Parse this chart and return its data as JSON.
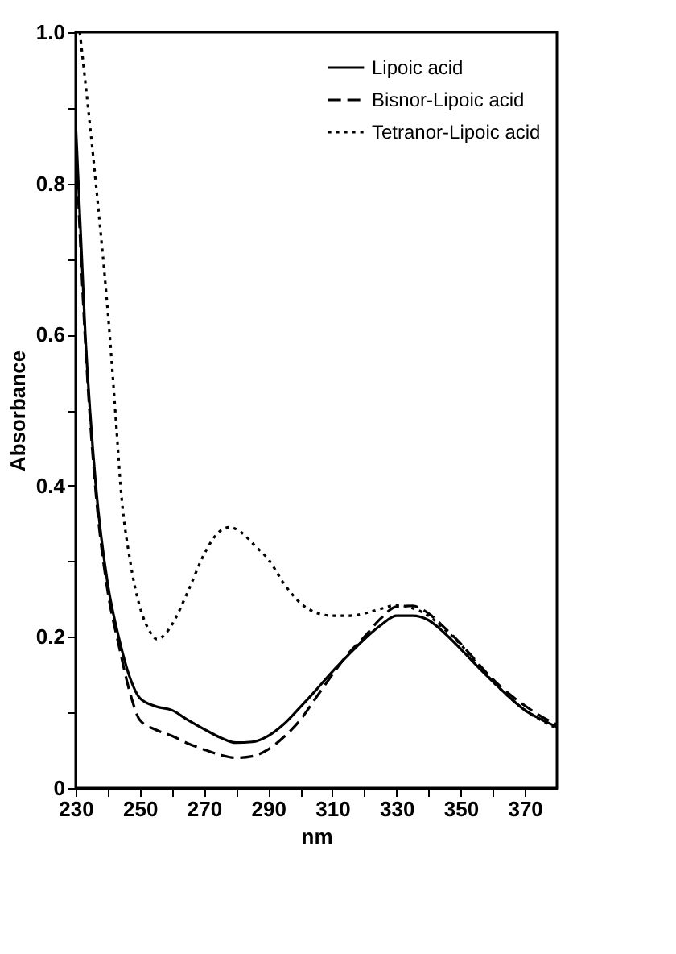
{
  "chart_data": {
    "type": "line",
    "xlabel": "nm",
    "ylabel": "Absorbance",
    "xlim": [
      230,
      380
    ],
    "ylim": [
      0,
      1
    ],
    "xticks": [
      230,
      {
        "value": 240,
        "label": null
      },
      250,
      {
        "value": 260,
        "label": null
      },
      270,
      {
        "value": 280,
        "label": null
      },
      290,
      {
        "value": 300,
        "label": null
      },
      310,
      {
        "value": 320,
        "label": null
      },
      330,
      {
        "value": 340,
        "label": null
      },
      350,
      {
        "value": 360,
        "label": null
      },
      370
    ],
    "yticks": [
      0,
      {
        "value": 0.1,
        "label": null
      },
      0.2,
      {
        "value": 0.3,
        "label": null
      },
      0.4,
      {
        "value": 0.5,
        "label": null
      },
      0.6,
      {
        "value": 0.7,
        "label": null
      },
      0.8,
      {
        "value": 0.9,
        "label": null
      },
      {
        "value": 1,
        "label": "1.0"
      }
    ],
    "legend": "top right",
    "grid": false,
    "marker": "none",
    "series": [
      {
        "name": "Lipoic acid",
        "color": "#000000",
        "line_style": "solid",
        "x": [
          230,
          233,
          236.3,
          240,
          243.4,
          247,
          250,
          255,
          260,
          265,
          270,
          275,
          280,
          285,
          290,
          295,
          300,
          305,
          310,
          315,
          320,
          325,
          330,
          335,
          340,
          345,
          350,
          355,
          360,
          365,
          370,
          375,
          380
        ],
        "values": [
          0.88,
          0.6,
          0.4,
          0.27,
          0.2,
          0.145,
          0.119,
          0.108,
          0.103,
          0.09,
          0.078,
          0.067,
          0.06,
          0.061,
          0.069,
          0.085,
          0.107,
          0.13,
          0.154,
          0.176,
          0.197,
          0.215,
          0.228,
          0.228,
          0.222,
          0.205,
          0.184,
          0.162,
          0.141,
          0.121,
          0.103,
          0.091,
          0.081
        ]
      },
      {
        "name": "Bisnor-Lipoic acid",
        "color": "#000000",
        "line_style": "dashed",
        "x": [
          230,
          233,
          236.3,
          240,
          243.4,
          247,
          250,
          255,
          260,
          265,
          270,
          275,
          280,
          285,
          290,
          295,
          300,
          305,
          310,
          315,
          320,
          325,
          330,
          335,
          340,
          345,
          350,
          355,
          360,
          365,
          370,
          375,
          380
        ],
        "values": [
          0.86,
          0.59,
          0.39,
          0.26,
          0.19,
          0.125,
          0.09,
          0.077,
          0.069,
          0.059,
          0.051,
          0.044,
          0.04,
          0.042,
          0.051,
          0.068,
          0.09,
          0.12,
          0.15,
          0.178,
          0.2,
          0.224,
          0.24,
          0.241,
          0.231,
          0.212,
          0.191,
          0.167,
          0.144,
          0.125,
          0.109,
          0.095,
          0.084
        ]
      },
      {
        "name": "Tetranor-Lipoic acid",
        "color": "#000000",
        "line_style": "dotted",
        "x": [
          231.3,
          236.3,
          240.6,
          242.7,
          244,
          247,
          250,
          253,
          255.3,
          258,
          260,
          265,
          270,
          274,
          278,
          282,
          286,
          290,
          295,
          300,
          305,
          310,
          315,
          320,
          325,
          330,
          335,
          340,
          345,
          350,
          355,
          360,
          365,
          370,
          375,
          380
        ],
        "values": [
          1,
          0.8,
          0.6,
          0.478,
          0.4,
          0.3,
          0.24,
          0.208,
          0.197,
          0.204,
          0.216,
          0.26,
          0.309,
          0.336,
          0.345,
          0.337,
          0.32,
          0.303,
          0.27,
          0.245,
          0.232,
          0.228,
          0.228,
          0.231,
          0.237,
          0.242,
          0.238,
          0.228,
          0.21,
          0.19,
          0.165,
          0.141,
          0.121,
          0.103,
          0.09,
          0.079
        ]
      }
    ]
  }
}
